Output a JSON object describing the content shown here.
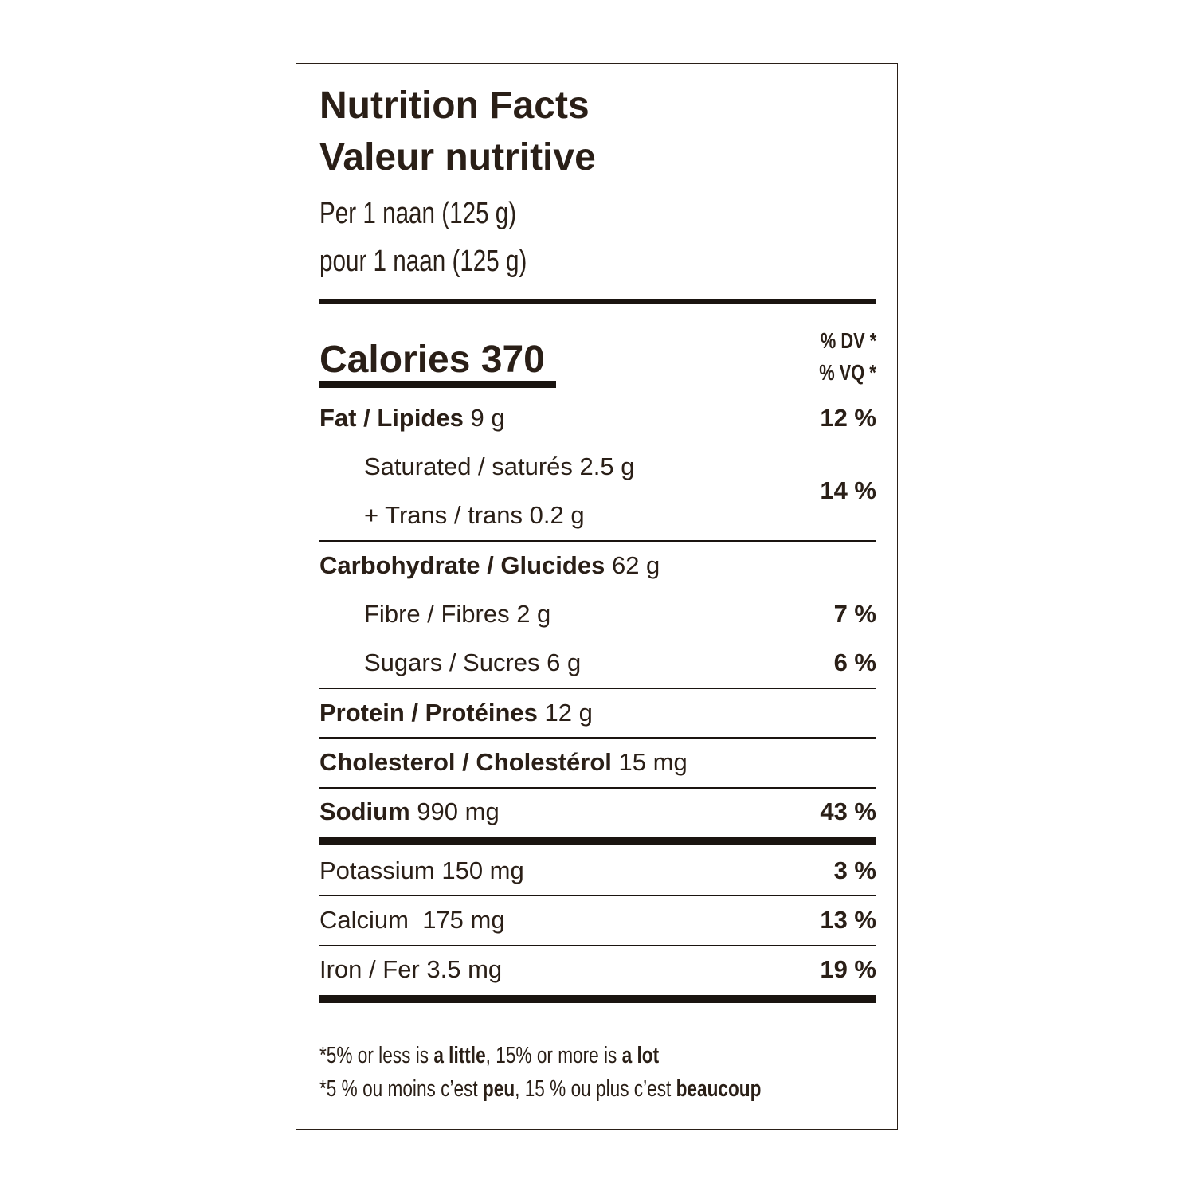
{
  "header": {
    "title": "Nutrition Facts",
    "title_fr": "Valeur nutritive",
    "serving": "Per 1 naan (125 g)",
    "serving_fr": "pour 1 naan (125 g)"
  },
  "calories": "Calories 370",
  "dv_header": [
    "% DV *",
    "% VQ *"
  ],
  "rows": [
    {
      "name": "Fat / Lipides",
      "amount": "9 g",
      "dv": "12 %"
    },
    {
      "name": "Saturated / saturés 2.5 g",
      "dv": "14 %"
    },
    {
      "name": "+ Trans / trans 0.2 g"
    },
    {
      "name": "Carbohydrate / Glucides",
      "amount": "62 g"
    },
    {
      "name": "Fibre / Fibres 2 g",
      "dv": "7 %"
    },
    {
      "name": "Sugars / Sucres 6 g",
      "dv": "6 %"
    },
    {
      "name": "Protein / Protéines",
      "amount": "12 g"
    },
    {
      "name": "Cholesterol / Cholestérol",
      "amount": "15 mg"
    },
    {
      "name": "Sodium",
      "amount": "990 mg",
      "dv": "43 %"
    },
    {
      "name": "Potassium 150 mg",
      "dv": "3 %"
    },
    {
      "name": "Calcium  175 mg",
      "dv": "13 %"
    },
    {
      "name": "Iron / Fer 3.5 mg",
      "dv": "19 %"
    }
  ],
  "footnote": [
    [
      "*5% or less is ",
      "a little",
      ", 15% or more is ",
      "a lot"
    ],
    [
      "*5 % ou moins c’est ",
      "peu",
      ", 15 % ou plus c’est ",
      "beaucoup"
    ]
  ]
}
